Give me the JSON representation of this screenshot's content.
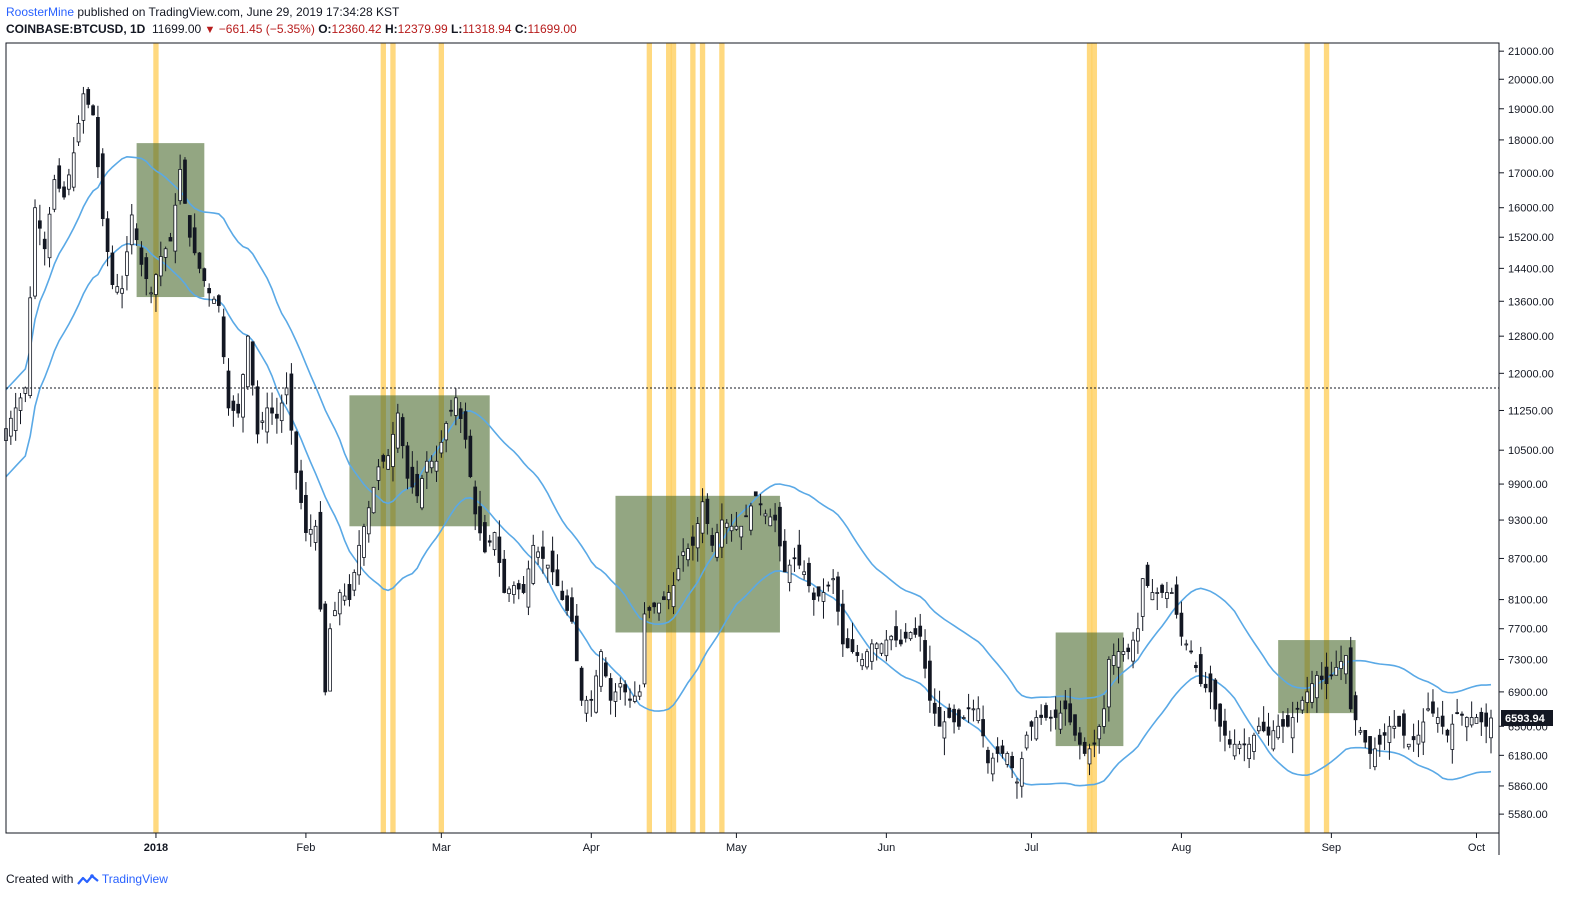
{
  "header": {
    "username": "RoosterMine",
    "published_text": "published on TradingView.com, June 29, 2019 17:34:28 KST",
    "symbol": "COINBASE:BTCUSD, 1D",
    "last": "11699.00",
    "change": "−661.45 (−5.35%)",
    "open_label": "O:",
    "open": "12360.42",
    "high_label": "H:",
    "high": "12379.99",
    "low_label": "L:",
    "low": "11318.94",
    "close_label": "C:",
    "close": "11699.00"
  },
  "footer": {
    "created_with": "Created with",
    "brand": "TradingView"
  },
  "colors": {
    "up": "#ffffff",
    "down": "#131722",
    "ma": "#5aa9e6",
    "highlight": "#ffb300",
    "box": "#4b6a2e",
    "price_label_bg": "#131722"
  },
  "chart_data": {
    "type": "candlestick",
    "title": "",
    "y_axis_scale": "log",
    "ylim": [
      5400,
      21300
    ],
    "y_ticks": [
      "21000.00",
      "20000.00",
      "19000.00",
      "18000.00",
      "17000.00",
      "16000.00",
      "15200.00",
      "14400.00",
      "13600.00",
      "12800.00",
      "12000.00",
      "11250.00",
      "10500.00",
      "9900.00",
      "9300.00",
      "8700.00",
      "8100.00",
      "7700.00",
      "7300.00",
      "6900.00",
      "6500.00",
      "6180.00",
      "5860.00",
      "5580.00"
    ],
    "x_ticks": [
      {
        "label": "2018",
        "date": "2018-01-01"
      },
      {
        "label": "Feb",
        "date": "2018-02-01"
      },
      {
        "label": "Mar",
        "date": "2018-03-01"
      },
      {
        "label": "Apr",
        "date": "2018-04-01"
      },
      {
        "label": "May",
        "date": "2018-05-01"
      },
      {
        "label": "Jun",
        "date": "2018-06-01"
      },
      {
        "label": "Jul",
        "date": "2018-07-01"
      },
      {
        "label": "Aug",
        "date": "2018-08-01"
      },
      {
        "label": "Sep",
        "date": "2018-09-01"
      },
      {
        "label": "Oct",
        "date": "2018-10-01"
      }
    ],
    "x_range": [
      "2017-12-01",
      "2018-10-04"
    ],
    "horizontal_line": 11699,
    "last_price_label": "6593.94",
    "last_price": 6593.94,
    "close_path": [
      [
        "2017-12-01",
        10900
      ],
      [
        "2017-12-03",
        11300
      ],
      [
        "2017-12-05",
        11700
      ],
      [
        "2017-12-07",
        16000
      ],
      [
        "2017-12-09",
        14900
      ],
      [
        "2017-12-11",
        16800
      ],
      [
        "2017-12-13",
        16300
      ],
      [
        "2017-12-15",
        17600
      ],
      [
        "2017-12-17",
        19500
      ],
      [
        "2017-12-19",
        18800
      ],
      [
        "2017-12-21",
        15700
      ],
      [
        "2017-12-23",
        14000
      ],
      [
        "2017-12-25",
        13900
      ],
      [
        "2017-12-27",
        15800
      ],
      [
        "2017-12-29",
        14500
      ],
      [
        "2017-12-31",
        13800
      ],
      [
        "2018-01-02",
        14700
      ],
      [
        "2018-01-04",
        15100
      ],
      [
        "2018-01-06",
        17100
      ],
      [
        "2018-01-08",
        15200
      ],
      [
        "2018-01-10",
        14400
      ],
      [
        "2018-01-12",
        13800
      ],
      [
        "2018-01-14",
        13500
      ],
      [
        "2018-01-16",
        11300
      ],
      [
        "2018-01-18",
        11200
      ],
      [
        "2018-01-20",
        12800
      ],
      [
        "2018-01-22",
        10800
      ],
      [
        "2018-01-24",
        11300
      ],
      [
        "2018-01-26",
        11100
      ],
      [
        "2018-01-28",
        11700
      ],
      [
        "2018-01-30",
        10100
      ],
      [
        "2018-02-01",
        9100
      ],
      [
        "2018-02-03",
        9200
      ],
      [
        "2018-02-05",
        6900
      ],
      [
        "2018-02-06",
        7700
      ],
      [
        "2018-02-08",
        8200
      ],
      [
        "2018-02-10",
        8100
      ],
      [
        "2018-02-12",
        8900
      ],
      [
        "2018-02-14",
        9500
      ],
      [
        "2018-02-16",
        10200
      ],
      [
        "2018-02-18",
        10400
      ],
      [
        "2018-02-20",
        11200
      ],
      [
        "2018-02-22",
        10000
      ],
      [
        "2018-02-24",
        9700
      ],
      [
        "2018-02-26",
        10300
      ],
      [
        "2018-02-28",
        10300
      ],
      [
        "2018-03-02",
        11000
      ],
      [
        "2018-03-04",
        11500
      ],
      [
        "2018-03-06",
        10700
      ],
      [
        "2018-03-08",
        9400
      ],
      [
        "2018-03-10",
        8800
      ],
      [
        "2018-03-12",
        9100
      ],
      [
        "2018-03-14",
        8200
      ],
      [
        "2018-03-16",
        8300
      ],
      [
        "2018-03-18",
        8200
      ],
      [
        "2018-03-20",
        8900
      ],
      [
        "2018-03-22",
        8700
      ],
      [
        "2018-03-24",
        8500
      ],
      [
        "2018-03-26",
        8100
      ],
      [
        "2018-03-28",
        7800
      ],
      [
        "2018-03-30",
        6800
      ],
      [
        "2018-04-01",
        6800
      ],
      [
        "2018-04-03",
        7400
      ],
      [
        "2018-04-05",
        6800
      ],
      [
        "2018-04-07",
        7000
      ],
      [
        "2018-04-09",
        6800
      ],
      [
        "2018-04-11",
        6900
      ],
      [
        "2018-04-12",
        7900
      ],
      [
        "2018-04-14",
        8000
      ],
      [
        "2018-04-16",
        8100
      ],
      [
        "2018-04-18",
        8300
      ],
      [
        "2018-04-20",
        8800
      ],
      [
        "2018-04-22",
        8900
      ],
      [
        "2018-04-24",
        9600
      ],
      [
        "2018-04-26",
        8900
      ],
      [
        "2018-04-28",
        9300
      ],
      [
        "2018-04-30",
        9200
      ],
      [
        "2018-05-02",
        9200
      ],
      [
        "2018-05-05",
        9700
      ],
      [
        "2018-05-07",
        9400
      ],
      [
        "2018-05-09",
        9300
      ],
      [
        "2018-05-11",
        8500
      ],
      [
        "2018-05-13",
        8700
      ],
      [
        "2018-05-15",
        8500
      ],
      [
        "2018-05-17",
        8100
      ],
      [
        "2018-05-19",
        8200
      ],
      [
        "2018-05-21",
        8400
      ],
      [
        "2018-05-23",
        7500
      ],
      [
        "2018-05-25",
        7400
      ],
      [
        "2018-05-27",
        7300
      ],
      [
        "2018-05-29",
        7500
      ],
      [
        "2018-05-31",
        7500
      ],
      [
        "2018-06-02",
        7600
      ],
      [
        "2018-06-04",
        7500
      ],
      [
        "2018-06-06",
        7650
      ],
      [
        "2018-06-08",
        7600
      ],
      [
        "2018-06-10",
        6800
      ],
      [
        "2018-06-12",
        6500
      ],
      [
        "2018-06-14",
        6600
      ],
      [
        "2018-06-16",
        6500
      ],
      [
        "2018-06-18",
        6700
      ],
      [
        "2018-06-20",
        6700
      ],
      [
        "2018-06-22",
        6100
      ],
      [
        "2018-06-24",
        6200
      ],
      [
        "2018-06-26",
        6200
      ],
      [
        "2018-06-28",
        5900
      ],
      [
        "2018-06-30",
        6400
      ],
      [
        "2018-07-02",
        6600
      ],
      [
        "2018-07-04",
        6600
      ],
      [
        "2018-07-06",
        6600
      ],
      [
        "2018-07-08",
        6700
      ],
      [
        "2018-07-10",
        6400
      ],
      [
        "2018-07-12",
        6200
      ],
      [
        "2018-07-14",
        6300
      ],
      [
        "2018-07-16",
        6700
      ],
      [
        "2018-07-17",
        7300
      ],
      [
        "2018-07-19",
        7400
      ],
      [
        "2018-07-21",
        7400
      ],
      [
        "2018-07-23",
        7700
      ],
      [
        "2018-07-24",
        8400
      ],
      [
        "2018-07-26",
        8200
      ],
      [
        "2018-07-28",
        8200
      ],
      [
        "2018-07-30",
        8200
      ],
      [
        "2018-08-01",
        7600
      ],
      [
        "2018-08-03",
        7400
      ],
      [
        "2018-08-05",
        7000
      ],
      [
        "2018-08-07",
        6900
      ],
      [
        "2018-08-09",
        6500
      ],
      [
        "2018-08-11",
        6300
      ],
      [
        "2018-08-13",
        6300
      ],
      [
        "2018-08-15",
        6300
      ],
      [
        "2018-08-17",
        6500
      ],
      [
        "2018-08-19",
        6400
      ],
      [
        "2018-08-21",
        6500
      ],
      [
        "2018-08-23",
        6500
      ],
      [
        "2018-08-25",
        6700
      ],
      [
        "2018-08-27",
        6900
      ],
      [
        "2018-08-29",
        7100
      ],
      [
        "2018-08-31",
        7000
      ],
      [
        "2018-09-02",
        7200
      ],
      [
        "2018-09-04",
        7350
      ],
      [
        "2018-09-05",
        6700
      ],
      [
        "2018-09-07",
        6450
      ],
      [
        "2018-09-09",
        6200
      ],
      [
        "2018-09-11",
        6300
      ],
      [
        "2018-09-13",
        6500
      ],
      [
        "2018-09-15",
        6500
      ],
      [
        "2018-09-17",
        6300
      ],
      [
        "2018-09-19",
        6400
      ],
      [
        "2018-09-21",
        6700
      ],
      [
        "2018-09-23",
        6600
      ],
      [
        "2018-09-25",
        6400
      ],
      [
        "2018-09-27",
        6650
      ],
      [
        "2018-09-29",
        6600
      ],
      [
        "2018-10-01",
        6600
      ],
      [
        "2018-10-03",
        6500
      ],
      [
        "2018-10-04",
        6593.94
      ]
    ],
    "highlight_days": [
      "2018-01-01",
      "2018-02-17",
      "2018-02-19",
      "2018-03-01",
      "2018-04-13",
      "2018-04-17",
      "2018-04-18",
      "2018-04-22",
      "2018-04-24",
      "2018-04-28",
      "2018-07-13",
      "2018-07-14",
      "2018-08-27",
      "2018-08-31"
    ],
    "boxes": [
      {
        "x0": "2017-12-28",
        "x1": "2018-01-11",
        "y0": 13700,
        "y1": 17900
      },
      {
        "x0": "2018-02-10",
        "x1": "2018-03-11",
        "y0": 9200,
        "y1": 11550
      },
      {
        "x0": "2018-04-06",
        "x1": "2018-05-10",
        "y0": 7650,
        "y1": 9700
      },
      {
        "x0": "2018-07-06",
        "x1": "2018-07-20",
        "y0": 6280,
        "y1": 7650
      },
      {
        "x0": "2018-08-21",
        "x1": "2018-09-06",
        "y0": 6650,
        "y1": 7550
      }
    ]
  }
}
